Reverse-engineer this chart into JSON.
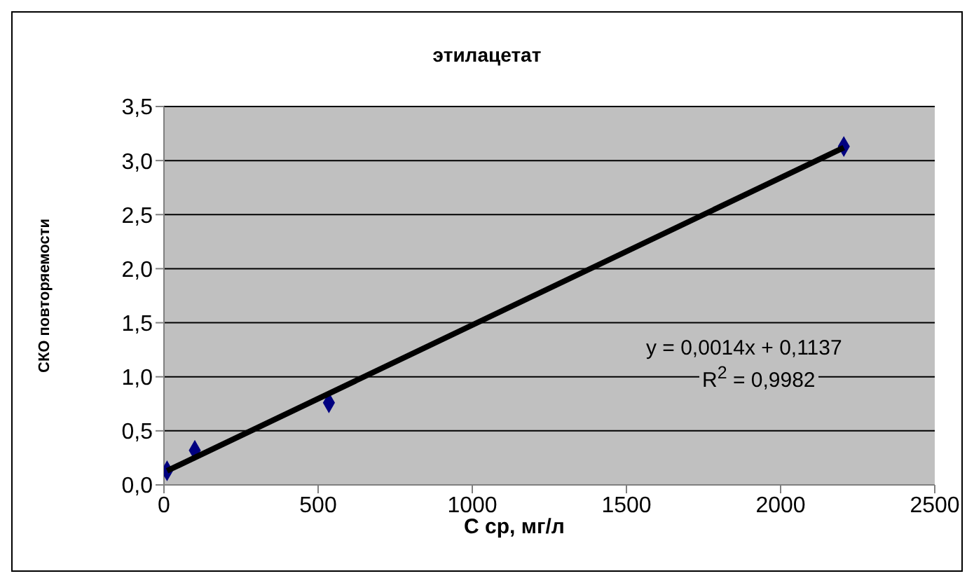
{
  "chart_data": {
    "type": "scatter",
    "title": "этилацетат",
    "xlabel": "C ср, мг/л",
    "ylabel": "СКО повторяемости",
    "series": [
      {
        "color": "#000080",
        "marker": "diamond",
        "x": [
          10,
          100,
          535,
          2205
        ],
        "values": [
          0.13,
          0.32,
          0.76,
          3.13
        ]
      },
      {
        "type": "line",
        "color": "#000000",
        "marker": "none",
        "x": [
          10,
          2205
        ],
        "values": [
          0.13,
          3.12
        ]
      }
    ],
    "xlim": [
      0,
      2500
    ],
    "xticks": [
      0,
      500,
      1000,
      1500,
      2000,
      2500
    ],
    "ylim": [
      0,
      3.5
    ],
    "yticks": [
      {
        "value": 0,
        "label": "0,0"
      },
      {
        "value": 0.5,
        "label": "0,5"
      },
      {
        "value": 1,
        "label": "1,0"
      },
      {
        "value": 1.5,
        "label": "1,5"
      },
      {
        "value": 2,
        "label": "2,0"
      },
      {
        "value": 2.5,
        "label": "2,5"
      },
      {
        "value": 3,
        "label": "3,0"
      },
      {
        "value": 3.5,
        "label": "3,5"
      }
    ],
    "grid": "y",
    "annotations": [
      "y = 0,0014x + 0,1137",
      "R$^{2}$ = 0,9982"
    ]
  }
}
